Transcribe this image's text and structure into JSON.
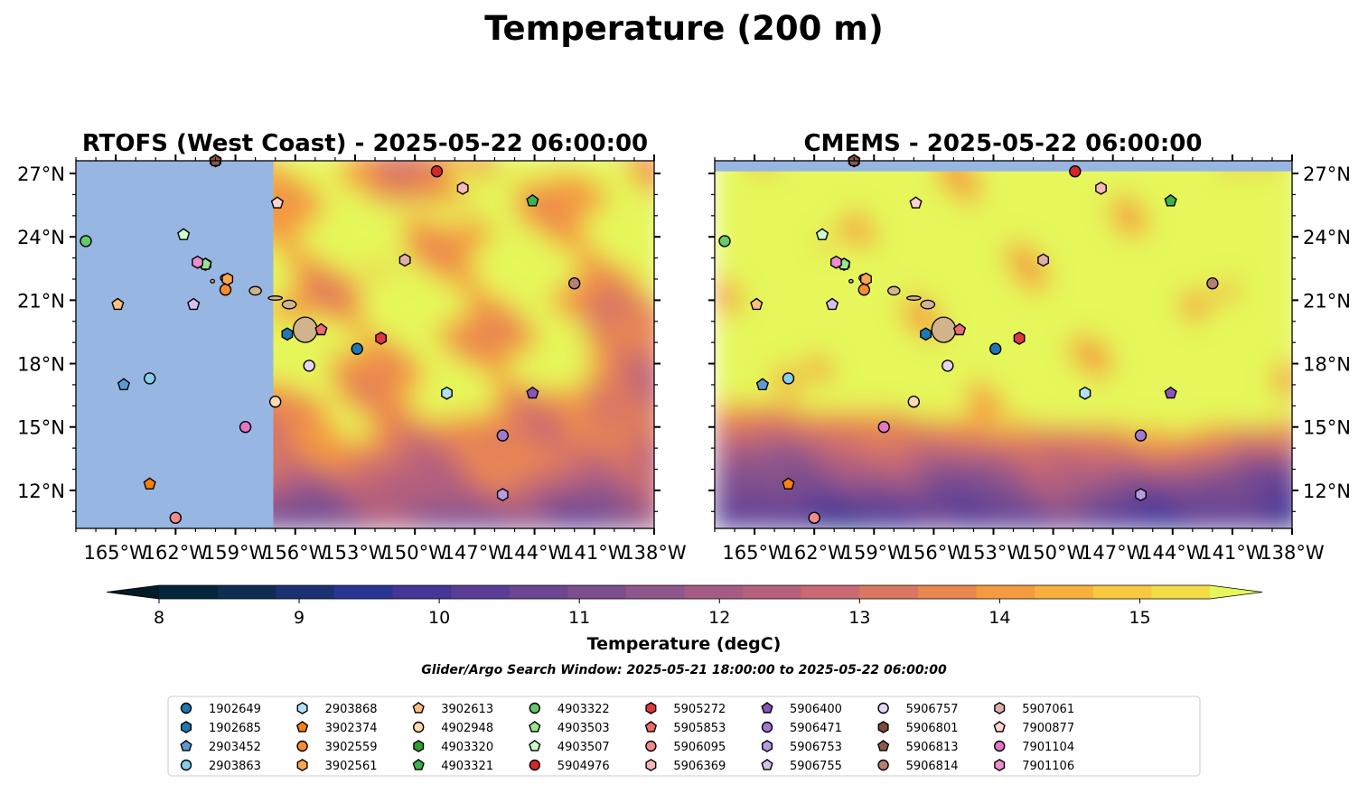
{
  "figure": {
    "title": "Temperature (200 m)",
    "note": "Glider/Argo Search Window: 2025-05-21 18:00:00 to 2025-05-22 06:00:00"
  },
  "chart_data": {
    "type": "heatmap",
    "variable": "Temperature (200 m)",
    "units": "degC",
    "panels": [
      {
        "title": "RTOFS (West Coast) - 2025-05-22 06:00:00",
        "model": "RTOFS (West Coast)",
        "time": "2025-05-22 06:00:00",
        "domain_edge_lon": -157.1,
        "note_on_field": "no data west of ~157W; mostly 15+ degC north of 17N, 11-13 degC in the south"
      },
      {
        "title": "CMEMS - 2025-05-22 06:00:00",
        "model": "CMEMS",
        "time": "2025-05-22 06:00:00",
        "note_on_field": "mostly >15.5 degC north of 15N, 10-12 degC south-east"
      }
    ],
    "lon_range": [
      -167,
      -138
    ],
    "lat_range": [
      10.2,
      27.6
    ],
    "x_ticks": [
      "165°W",
      "162°W",
      "159°W",
      "156°W",
      "153°W",
      "150°W",
      "147°W",
      "144°W",
      "141°W",
      "138°W"
    ],
    "y_ticks": [
      "27°N",
      "24°N",
      "21°N",
      "18°N",
      "15°N",
      "12°N"
    ],
    "grid": false,
    "colorbar": {
      "label": "Temperature (degC)",
      "min": 8,
      "max": 15.5,
      "step": 0.5,
      "extend": "both",
      "ticks": [
        "8",
        "9",
        "10",
        "11",
        "12",
        "13",
        "14",
        "15"
      ],
      "tick_values": [
        8,
        9,
        10,
        11,
        12,
        13,
        14,
        15
      ],
      "colors": [
        "#05253a",
        "#0f2d52",
        "#1a3272",
        "#2a3493",
        "#443597",
        "#583c96",
        "#6c4593",
        "#7d4e8e",
        "#8e568a",
        "#a45c84",
        "#b7607c",
        "#c96a72",
        "#d97763",
        "#e98751",
        "#f49a40",
        "#f8b03c",
        "#f8c841",
        "#f3dc46"
      ],
      "under_color": "#021a2a",
      "over_color": "#e5f75a"
    },
    "colors": {
      "land": "#d2b48c",
      "no_data_ocean": "#98b6e2"
    },
    "legend_location": "lower center",
    "legend_columns": 9,
    "floats": [
      {
        "id": "1902649",
        "marker": "circle",
        "color": "#1f77b4",
        "lon": -152.9,
        "lat": 18.7
      },
      {
        "id": "1902685",
        "marker": "hexagon",
        "color": "#1f77b4",
        "lon": -156.4,
        "lat": 19.4
      },
      {
        "id": "2903452",
        "marker": "pentagon",
        "color": "#5b9bd5",
        "lon": -164.6,
        "lat": 17.0
      },
      {
        "id": "2903863",
        "marker": "circle",
        "color": "#87ceeb",
        "lon": -163.3,
        "lat": 17.3
      },
      {
        "id": "2903868",
        "marker": "hexagon",
        "color": "#b0e0ff",
        "lon": -148.4,
        "lat": 16.6
      },
      {
        "id": "3902374",
        "marker": "pentagon",
        "color": "#ff7f0e",
        "lon": -163.3,
        "lat": 12.3
      },
      {
        "id": "3902559",
        "marker": "circle",
        "color": "#ff8c2e",
        "lon": -159.5,
        "lat": 21.5
      },
      {
        "id": "3902561",
        "marker": "hexagon",
        "color": "#ffa54f",
        "lon": -159.4,
        "lat": 22.0
      },
      {
        "id": "3902613",
        "marker": "pentagon",
        "color": "#ffbf80",
        "lon": -164.9,
        "lat": 20.8
      },
      {
        "id": "4902948",
        "marker": "circle",
        "color": "#ffdab0",
        "lon": -157.0,
        "lat": 16.2
      },
      {
        "id": "4903320",
        "marker": "hexagon",
        "color": "#2ca02c",
        "lon": -160.5,
        "lat": 22.7
      },
      {
        "id": "4903321",
        "marker": "pentagon",
        "color": "#3cb34a",
        "lon": -144.1,
        "lat": 25.7
      },
      {
        "id": "4903322",
        "marker": "circle",
        "color": "#66c96a",
        "lon": -166.5,
        "lat": 23.8
      },
      {
        "id": "4903503",
        "marker": "pentagon",
        "color": "#98e58f",
        "lon": -160.5,
        "lat": 22.7
      },
      {
        "id": "4903507",
        "marker": "pentagon",
        "color": "#ccffcc",
        "lon": -161.6,
        "lat": 24.1
      },
      {
        "id": "5904976",
        "marker": "circle",
        "color": "#d62728",
        "lon": -148.9,
        "lat": 27.1
      },
      {
        "id": "5905272",
        "marker": "hexagon",
        "color": "#e0383a",
        "lon": -151.7,
        "lat": 19.2
      },
      {
        "id": "5905853",
        "marker": "pentagon",
        "color": "#ef6a6c",
        "lon": -154.7,
        "lat": 19.6
      },
      {
        "id": "5906095",
        "marker": "circle",
        "color": "#f08c8c",
        "lon": -162.0,
        "lat": 10.7
      },
      {
        "id": "5906369",
        "marker": "hexagon",
        "color": "#f7b8b6",
        "lon": -147.6,
        "lat": 26.3
      },
      {
        "id": "5906400",
        "marker": "pentagon",
        "color": "#8a55b9",
        "lon": -144.1,
        "lat": 16.6
      },
      {
        "id": "5906471",
        "marker": "circle",
        "color": "#a07ad0",
        "lon": -145.6,
        "lat": 14.6
      },
      {
        "id": "5906753",
        "marker": "hexagon",
        "color": "#b79ae0",
        "lon": -145.6,
        "lat": 11.8
      },
      {
        "id": "5906755",
        "marker": "pentagon",
        "color": "#d6c0f0",
        "lon": -161.1,
        "lat": 20.8
      },
      {
        "id": "5906757",
        "marker": "circle",
        "color": "#e7d5f7",
        "lon": -155.3,
        "lat": 17.9
      },
      {
        "id": "5906801",
        "marker": "hexagon",
        "color": "#7f4b39",
        "lon": -160.0,
        "lat": 27.6
      },
      {
        "id": "5906813",
        "marker": "pentagon",
        "color": "#8c5a4a",
        "lon": -160.0,
        "lat": 27.6
      },
      {
        "id": "5906814",
        "marker": "circle",
        "color": "#b5806f",
        "lon": -142.0,
        "lat": 21.8
      },
      {
        "id": "5907061",
        "marker": "hexagon",
        "color": "#e0b0a8",
        "lon": -150.5,
        "lat": 22.9
      },
      {
        "id": "7900877",
        "marker": "pentagon",
        "color": "#fcd5cf",
        "lon": -156.9,
        "lat": 25.6
      },
      {
        "id": "7901104",
        "marker": "circle",
        "color": "#e377c2",
        "lon": -158.5,
        "lat": 15.0
      },
      {
        "id": "7901106",
        "marker": "hexagon",
        "color": "#ea8ed0",
        "lon": -160.9,
        "lat": 22.8
      }
    ],
    "islands": [
      {
        "name": "Hawaii",
        "lon": -155.5,
        "lat": 19.6,
        "rx_deg": 0.6,
        "ry_deg": 0.6
      },
      {
        "name": "Maui",
        "lon": -156.3,
        "lat": 20.8,
        "rx_deg": 0.35,
        "ry_deg": 0.2
      },
      {
        "name": "Molokai",
        "lon": -157.0,
        "lat": 21.1,
        "rx_deg": 0.35,
        "ry_deg": 0.1
      },
      {
        "name": "Oahu",
        "lon": -158.0,
        "lat": 21.45,
        "rx_deg": 0.3,
        "ry_deg": 0.2
      },
      {
        "name": "Kauai",
        "lon": -159.5,
        "lat": 22.05,
        "rx_deg": 0.25,
        "ry_deg": 0.18
      },
      {
        "name": "Niihau",
        "lon": -160.15,
        "lat": 21.9,
        "rx_deg": 0.1,
        "ry_deg": 0.08
      }
    ]
  }
}
